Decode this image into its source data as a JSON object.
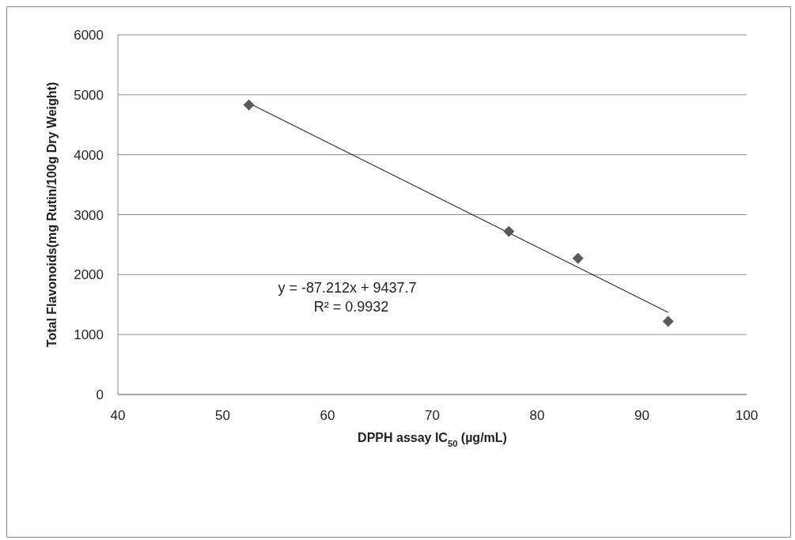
{
  "chart_data": {
    "type": "scatter",
    "xlabel": "DPPH assay IC$_{50}$ (µg/mL)",
    "ylabel": "Total Flavonoids(mg Rutin/100g Dry Weight)",
    "x": [
      52.5,
      77.3,
      83.9,
      92.5
    ],
    "series": [
      {
        "color": "#595959",
        "values": [
          4830,
          2720,
          2270,
          1220
        ],
        "marker": "diamond"
      },
      {
        "type": "line",
        "color": "#000000",
        "x": [
          52.5,
          92.5
        ],
        "values": [
          4860,
          1370
        ],
        "marker": "none"
      }
    ],
    "annotations": [
      "y = -87.212x + 9437.7",
      "R² = 0.9932"
    ],
    "xlim": [
      40,
      100
    ],
    "xticks": [
      40,
      50,
      60,
      70,
      80,
      90,
      100
    ],
    "ylim": [
      0,
      6000
    ],
    "yticks": [
      0,
      1000,
      2000,
      3000,
      4000,
      5000,
      6000
    ],
    "grid": "y",
    "legend": false
  }
}
